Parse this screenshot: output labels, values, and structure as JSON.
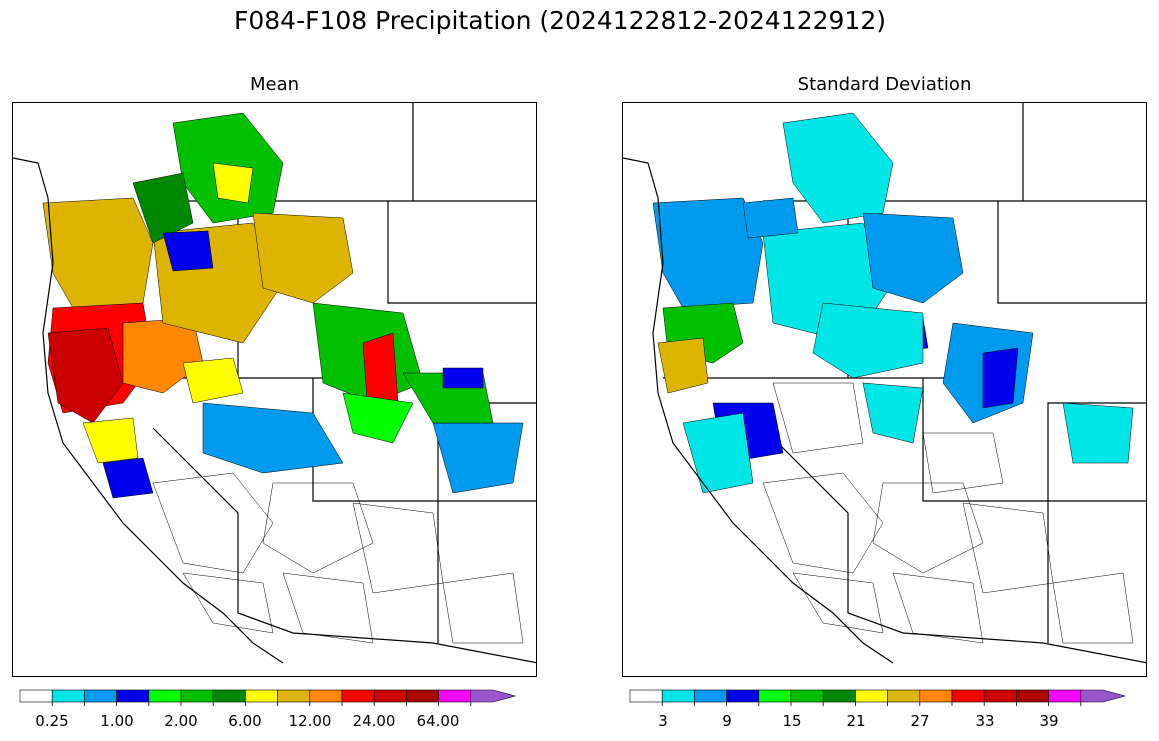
{
  "title": "F084-F108 Precipitation (2024122812-2024122912)",
  "panels": [
    {
      "id": "mean",
      "title": "Mean",
      "colorbar": {
        "colors": [
          "#ffffff",
          "#00e5e5",
          "#009aee",
          "#0000ee",
          "#00ff00",
          "#00c000",
          "#008800",
          "#ffff00",
          "#ddb500",
          "#ff8800",
          "#ff0000",
          "#cc0000",
          "#aa0000",
          "#ff00ff",
          "#9955cc"
        ],
        "extend": "max",
        "tick_labels": [
          "0.25",
          "1.00",
          "2.00",
          "6.00",
          "12.00",
          "24.00",
          "64.00"
        ]
      }
    },
    {
      "id": "stddev",
      "title": "Standard Deviation",
      "colorbar": {
        "colors": [
          "#ffffff",
          "#00e5e5",
          "#009aee",
          "#0000ee",
          "#00ff00",
          "#00c000",
          "#008800",
          "#ffff00",
          "#ddb500",
          "#ff8800",
          "#ff0000",
          "#cc0000",
          "#aa0000",
          "#ff00ff",
          "#9955cc"
        ],
        "extend": "max",
        "tick_labels": [
          "3",
          "9",
          "15",
          "21",
          "27",
          "33",
          "39"
        ]
      }
    }
  ]
}
